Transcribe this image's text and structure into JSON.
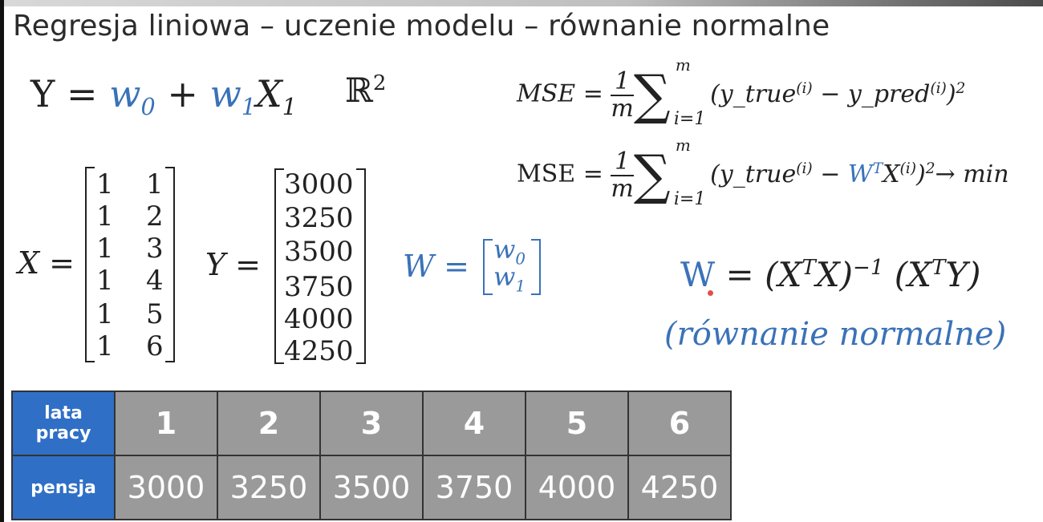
{
  "title": "Regresja liniowa – uczenie modelu – równanie normalne",
  "model": {
    "Y": "Y",
    "eq": "=",
    "w0": "w",
    "w0sub": "0",
    "plus": "+",
    "w1": "w",
    "w1sub": "1",
    "X1": "X",
    "X1sub": "1",
    "space": "ℝ",
    "space_sup": "2"
  },
  "mse1": {
    "lhs": "MSE =",
    "num": "1",
    "den": "m",
    "top": "m",
    "bottom": "i=1",
    "body_a": "(y_true",
    "sup_a": "(i)",
    "minus": " − y_pred",
    "sup_b": "(i)",
    "close": ")",
    "sq": "2"
  },
  "mse2": {
    "lhs": "MSE =",
    "num": "1",
    "den": "m",
    "top": "m",
    "bottom": "i=1",
    "body_a": "(y_true",
    "sup_a": "(i)",
    "minus": " − ",
    "W": "W",
    "T": "T",
    "X": "X",
    "sup_x": "(i)",
    "rest": ")",
    "sq": "2",
    "arrow": "→ min"
  },
  "X_matrix": {
    "label": "X =",
    "rows": [
      [
        "1",
        "1"
      ],
      [
        "1",
        "2"
      ],
      [
        "1",
        "3"
      ],
      [
        "1",
        "4"
      ],
      [
        "1",
        "5"
      ],
      [
        "1",
        "6"
      ]
    ]
  },
  "Y_matrix": {
    "label": "Y =",
    "rows": [
      "3000",
      "3250",
      "3500",
      "3750",
      "4000",
      "4250"
    ]
  },
  "W_vector": {
    "label": "W =",
    "rows": [
      {
        "base": "w",
        "sub": "0"
      },
      {
        "base": "w",
        "sub": "1"
      }
    ]
  },
  "normal_eq": {
    "W": "W",
    "eq": "= (X",
    "T1": "T",
    "mid": "X)",
    "inv": "−1",
    "mid2": " (X",
    "T2": "T",
    "end": "Y)"
  },
  "normal_eq_label": "(równanie normalne)",
  "table": {
    "row1_header_a": "lata",
    "row1_header_b": "pracy",
    "row2_header": "pensja",
    "years": [
      "1",
      "2",
      "3",
      "4",
      "5",
      "6"
    ],
    "salaries": [
      "3000",
      "3250",
      "3500",
      "3750",
      "4000",
      "4250"
    ]
  },
  "colors": {
    "accent": "#3a72b8",
    "table_header": "#2f6fc6",
    "table_cell": "#9a9a9a"
  }
}
